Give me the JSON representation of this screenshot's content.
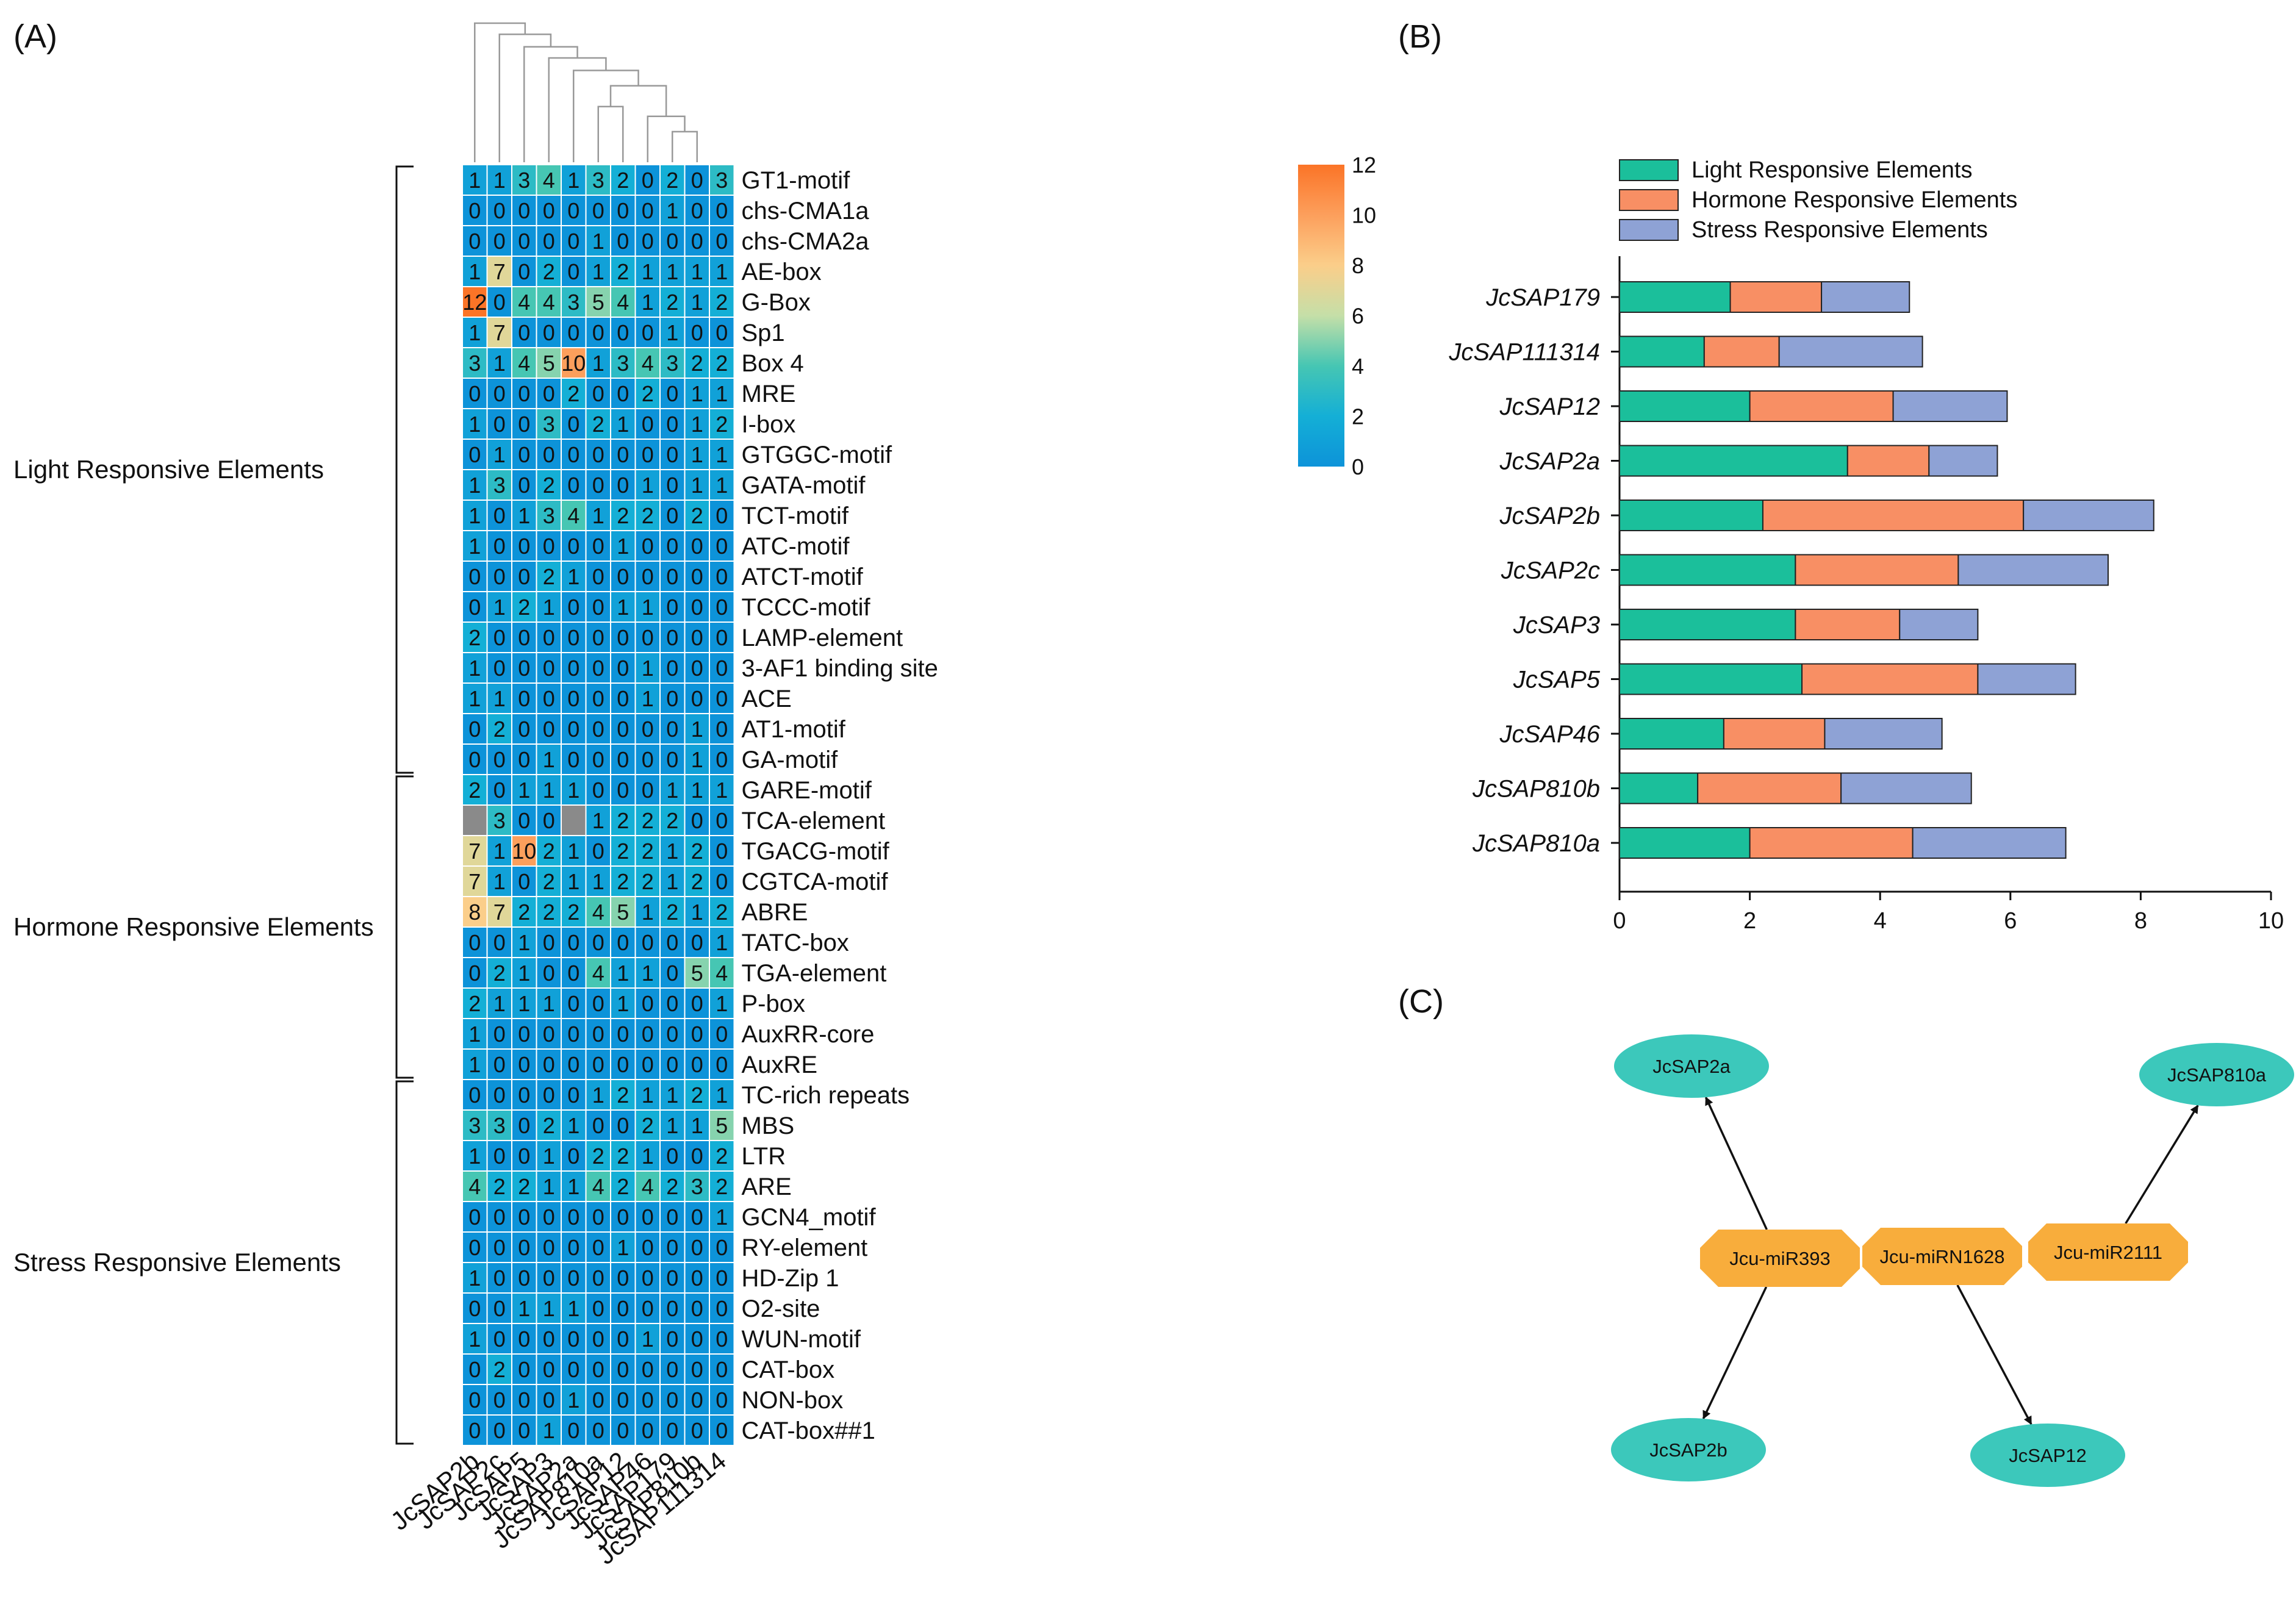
{
  "panel_labels": {
    "a": "(A)",
    "b": "(B)",
    "c": "(C)"
  },
  "colors": {
    "light": "#1bbf9b",
    "hormone": "#f88f64",
    "stress": "#8ea2d5",
    "missing": "#8a8a8a",
    "mirna": "#f8ad3c",
    "gene": "#3cc8bb"
  },
  "chart_data": [
    {
      "type": "heatmap",
      "panel": "(A)",
      "columns": [
        "JcSAP2b",
        "JcSAP2c",
        "JcSAP5",
        "JcSAP3",
        "JcSAP2a",
        "JcSAP810a",
        "JcSAP12",
        "JcSAP46",
        "JcSAP179",
        "JcSAP810b",
        "JcSAP111314"
      ],
      "rows": [
        "GT1-motif",
        "chs-CMA1a",
        "chs-CMA2a",
        "AE-box",
        "G-Box",
        "Sp1",
        "Box 4",
        "MRE",
        "I-box",
        "GTGGC-motif",
        "GATA-motif",
        "TCT-motif",
        "ATC-motif",
        "ATCT-motif",
        "TCCC-motif",
        "LAMP-element",
        "3-AF1 binding site",
        "ACE",
        "AT1-motif",
        "GA-motif",
        "GARE-motif",
        "TCA-element",
        "TGACG-motif",
        "CGTCA-motif",
        "ABRE",
        "TATC-box",
        "TGA-element",
        "P-box",
        "AuxRR-core",
        "AuxRE",
        "TC-rich repeats",
        "MBS",
        "LTR",
        "ARE",
        "GCN4_motif",
        "RY-element",
        "HD-Zip 1",
        "O2-site",
        "WUN-motif",
        "CAT-box",
        "NON-box",
        "CAT-box##1"
      ],
      "values": [
        [
          1,
          1,
          3,
          4,
          1,
          3,
          2,
          0,
          2,
          0,
          3
        ],
        [
          0,
          0,
          0,
          0,
          0,
          0,
          0,
          0,
          1,
          0,
          0
        ],
        [
          0,
          0,
          0,
          0,
          0,
          1,
          0,
          0,
          0,
          0,
          0
        ],
        [
          1,
          7,
          0,
          2,
          0,
          1,
          2,
          1,
          1,
          1,
          1
        ],
        [
          12,
          0,
          4,
          4,
          3,
          5,
          4,
          1,
          2,
          1,
          2
        ],
        [
          1,
          7,
          0,
          0,
          0,
          0,
          0,
          0,
          1,
          0,
          0
        ],
        [
          3,
          1,
          4,
          5,
          10,
          1,
          3,
          4,
          3,
          2,
          2
        ],
        [
          0,
          0,
          0,
          0,
          2,
          0,
          0,
          2,
          0,
          1,
          1
        ],
        [
          1,
          0,
          0,
          3,
          0,
          2,
          1,
          0,
          0,
          1,
          2
        ],
        [
          0,
          1,
          0,
          0,
          0,
          0,
          0,
          0,
          0,
          1,
          1
        ],
        [
          1,
          3,
          0,
          2,
          0,
          0,
          0,
          1,
          0,
          1,
          1
        ],
        [
          1,
          0,
          1,
          3,
          4,
          1,
          2,
          2,
          0,
          2,
          0
        ],
        [
          1,
          0,
          0,
          0,
          0,
          0,
          1,
          0,
          0,
          0,
          0
        ],
        [
          0,
          0,
          0,
          2,
          1,
          0,
          0,
          0,
          0,
          0,
          0
        ],
        [
          0,
          1,
          2,
          1,
          0,
          0,
          1,
          1,
          0,
          0,
          0
        ],
        [
          2,
          0,
          0,
          0,
          0,
          0,
          0,
          0,
          0,
          0,
          0
        ],
        [
          1,
          0,
          0,
          0,
          0,
          0,
          0,
          1,
          0,
          0,
          0
        ],
        [
          1,
          1,
          0,
          0,
          0,
          0,
          0,
          1,
          0,
          0,
          0
        ],
        [
          0,
          2,
          0,
          0,
          0,
          0,
          0,
          0,
          0,
          1,
          0
        ],
        [
          0,
          0,
          0,
          1,
          0,
          0,
          0,
          0,
          0,
          1,
          0
        ],
        [
          2,
          0,
          1,
          1,
          1,
          0,
          0,
          0,
          1,
          1,
          1
        ],
        [
          null,
          3,
          0,
          0,
          null,
          1,
          2,
          2,
          2,
          0,
          0
        ],
        [
          7,
          1,
          10,
          2,
          1,
          0,
          2,
          2,
          1,
          2,
          0
        ],
        [
          7,
          1,
          0,
          2,
          1,
          1,
          2,
          2,
          1,
          2,
          0
        ],
        [
          8,
          7,
          2,
          2,
          2,
          4,
          5,
          1,
          2,
          1,
          2
        ],
        [
          0,
          0,
          1,
          0,
          0,
          0,
          0,
          0,
          0,
          0,
          1
        ],
        [
          0,
          2,
          1,
          0,
          0,
          4,
          1,
          1,
          0,
          5,
          4
        ],
        [
          2,
          1,
          1,
          1,
          0,
          0,
          1,
          0,
          0,
          0,
          1
        ],
        [
          1,
          0,
          0,
          0,
          0,
          0,
          0,
          0,
          0,
          0,
          0
        ],
        [
          1,
          0,
          0,
          0,
          0,
          0,
          0,
          0,
          0,
          0,
          0
        ],
        [
          0,
          0,
          0,
          0,
          0,
          1,
          2,
          1,
          1,
          2,
          1
        ],
        [
          3,
          3,
          0,
          2,
          1,
          0,
          0,
          2,
          1,
          1,
          5
        ],
        [
          1,
          0,
          0,
          1,
          0,
          2,
          2,
          1,
          0,
          0,
          2
        ],
        [
          4,
          2,
          2,
          1,
          1,
          4,
          2,
          4,
          2,
          3,
          2
        ],
        [
          0,
          0,
          0,
          0,
          0,
          0,
          0,
          0,
          0,
          0,
          1
        ],
        [
          0,
          0,
          0,
          0,
          0,
          0,
          1,
          0,
          0,
          0,
          0
        ],
        [
          1,
          0,
          0,
          0,
          0,
          0,
          0,
          0,
          0,
          0,
          0
        ],
        [
          0,
          0,
          1,
          1,
          1,
          0,
          0,
          0,
          0,
          0,
          0
        ],
        [
          1,
          0,
          0,
          0,
          0,
          0,
          0,
          1,
          0,
          0,
          0
        ],
        [
          0,
          2,
          0,
          0,
          0,
          0,
          0,
          0,
          0,
          0,
          0
        ],
        [
          0,
          0,
          0,
          0,
          1,
          0,
          0,
          0,
          0,
          0,
          0
        ],
        [
          0,
          0,
          0,
          1,
          0,
          0,
          0,
          0,
          0,
          0,
          0
        ]
      ],
      "groups": [
        {
          "label": "Light Responsive Elements",
          "first_row": 0,
          "last_row": 19
        },
        {
          "label": "Hormone Responsive Elements",
          "first_row": 20,
          "last_row": 29
        },
        {
          "label": "Stress Responsive Elements",
          "first_row": 30,
          "last_row": 41
        }
      ],
      "dendrogram_merges": [
        [
          8,
          9
        ],
        [
          7,
          "m0"
        ],
        [
          5,
          6
        ],
        [
          "m2",
          "m1"
        ],
        [
          4,
          "m3"
        ],
        [
          3,
          "m4"
        ],
        [
          2,
          "m5"
        ],
        [
          1,
          "m6"
        ],
        [
          0,
          "m7"
        ]
      ],
      "colorbar": {
        "min": 0,
        "max": 12,
        "ticks": [
          "0",
          "2",
          "4",
          "6",
          "8",
          "10",
          "12"
        ],
        "stops": [
          "#0d93d9",
          "#14afd6",
          "#46c6b3",
          "#c5dfa8",
          "#fbce8a",
          "#fc9f5c",
          "#fb7427"
        ]
      }
    },
    {
      "type": "bar",
      "orientation": "horizontal",
      "stacked": true,
      "panel": "(B)",
      "categories": [
        "JcSAP179",
        "JcSAP111314",
        "JcSAP12",
        "JcSAP2a",
        "JcSAP2b",
        "JcSAP2c",
        "JcSAP3",
        "JcSAP5",
        "JcSAP46",
        "JcSAP810b",
        "JcSAP810a"
      ],
      "series": [
        {
          "name": "Light Responsive Elements",
          "values": [
            1.7,
            1.3,
            2.0,
            3.5,
            2.2,
            2.7,
            2.7,
            2.8,
            1.6,
            1.2,
            2.0
          ]
        },
        {
          "name": "Hormone Responsive Elements",
          "values": [
            1.4,
            1.15,
            2.2,
            1.25,
            4.0,
            2.5,
            1.6,
            2.7,
            1.55,
            2.2,
            2.5
          ]
        },
        {
          "name": "Stress Responsive Elements",
          "values": [
            1.35,
            2.2,
            1.75,
            1.05,
            2.0,
            2.3,
            1.2,
            1.5,
            1.8,
            2.0,
            2.35
          ]
        }
      ],
      "xlim": [
        0,
        10
      ],
      "xticks": [
        "0",
        "2",
        "4",
        "6",
        "8",
        "10"
      ],
      "legend": "top-left"
    }
  ],
  "network": {
    "mirnas": [
      "Jcu-miR393",
      "Jcu-miRN1628",
      "Jcu-miR2111"
    ],
    "genes": [
      "JcSAP2a",
      "JcSAP810a",
      "JcSAP2b",
      "JcSAP12"
    ],
    "edges": [
      {
        "from": "Jcu-miR393",
        "to": "JcSAP2a"
      },
      {
        "from": "Jcu-miR393",
        "to": "JcSAP2b"
      },
      {
        "from": "Jcu-miRN1628",
        "to": "JcSAP12"
      },
      {
        "from": "Jcu-miR2111",
        "to": "JcSAP810a"
      }
    ]
  }
}
